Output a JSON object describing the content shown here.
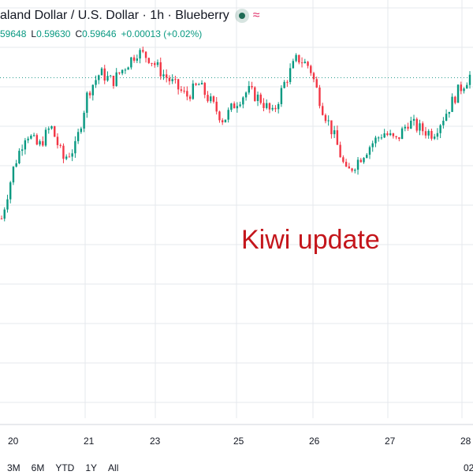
{
  "header": {
    "title": "aland Dollar / U.S. Dollar · 1h · Blueberry",
    "status_icon": "green-dot-icon",
    "indicator_icon": "wave-icon",
    "indicator_glyph": "≈"
  },
  "ohlc": {
    "high_value": "59648",
    "low_key": "L",
    "low_value": "0.59630",
    "close_key": "C",
    "close_value": "0.59646",
    "change": "+0.00013 (+0.02%)"
  },
  "annotation": {
    "text": "Kiwi update",
    "color": "#c4161c"
  },
  "range_buttons": [
    "3M",
    "6M",
    "YTD",
    "1Y",
    "All"
  ],
  "corner_label": "02",
  "colors": {
    "up": "#089981",
    "down": "#f23645",
    "grid": "#e6e8ec",
    "dotted": "#2a9d8f"
  },
  "chart_data": {
    "type": "candlestick",
    "title": "",
    "x_ticks": [
      "20",
      "21",
      "23",
      "25",
      "26",
      "27",
      "28"
    ],
    "last_close": 0.59646,
    "grid": true,
    "path_close": [
      0.587,
      0.5905,
      0.5928,
      0.5918,
      0.5932,
      0.591,
      0.5918,
      0.5955,
      0.5968,
      0.5962,
      0.5972,
      0.5982,
      0.5978,
      0.5968,
      0.596,
      0.5952,
      0.596,
      0.5948,
      0.5936,
      0.5948,
      0.5956,
      0.595,
      0.594,
      0.5962,
      0.5978,
      0.5972,
      0.5945,
      0.5925,
      0.59,
      0.591,
      0.592,
      0.5928,
      0.5922,
      0.5935,
      0.593,
      0.5927,
      0.594,
      0.5955,
      0.5966
    ]
  }
}
